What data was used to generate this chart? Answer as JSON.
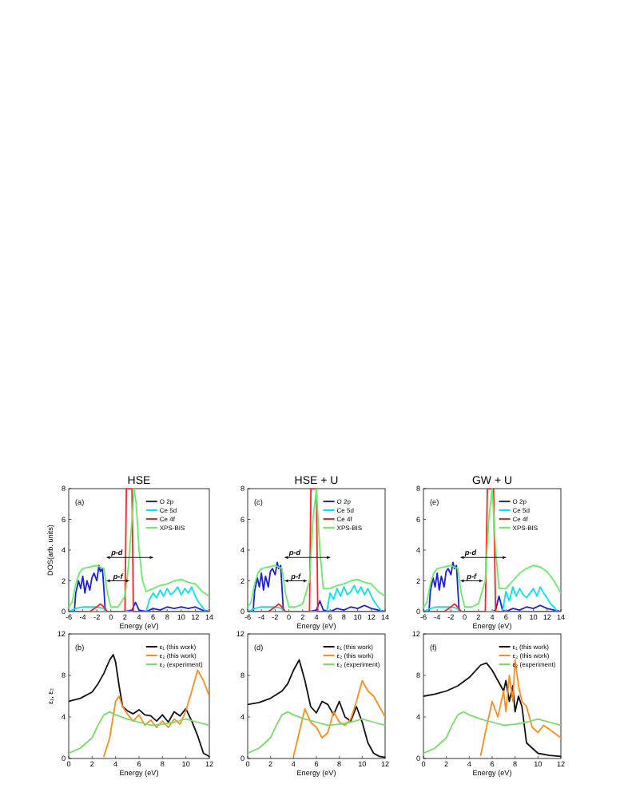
{
  "chart_data": [
    {
      "type": "line",
      "title": "HSE",
      "xlabel": "Energy (eV)",
      "ylabel": "DOS(arb. units)",
      "xlim": [
        -6,
        14
      ],
      "ylim": [
        0,
        8
      ],
      "xticks": [
        -6,
        -4,
        -2,
        0,
        2,
        4,
        6,
        8,
        10,
        12,
        14
      ],
      "yticks": [
        0,
        2,
        4,
        6,
        8
      ],
      "legend": "top right",
      "annotations": [
        "(a)",
        "p-d",
        "p-f"
      ],
      "series": [
        {
          "name": "O  2p",
          "color": "#1f1fe0",
          "x": [
            -6,
            -5.2,
            -5,
            -4.6,
            -4.3,
            -4,
            -3.7,
            -3.4,
            -3,
            -2.7,
            -2.4,
            -2,
            -1.7,
            -1.5,
            -1.2,
            -1,
            -0.8,
            0,
            2,
            3,
            3.5,
            4,
            5,
            6,
            7,
            8,
            9,
            10,
            11,
            12,
            13,
            14
          ],
          "values": [
            0,
            0,
            1.2,
            2,
            1.5,
            2.3,
            1.2,
            2,
            1.4,
            2.2,
            2.5,
            2,
            3,
            2.6,
            2.8,
            1.5,
            0,
            0,
            0,
            0.1,
            0.6,
            0.1,
            0,
            0.2,
            0.1,
            0.3,
            0.2,
            0.3,
            0.2,
            0.3,
            0.1,
            0
          ]
        },
        {
          "name": "Ce 5d",
          "color": "#00e5ee",
          "x": [
            -6,
            -5,
            -4,
            -2,
            -1,
            -0.8,
            0,
            5,
            5.5,
            6,
            6.5,
            7,
            7.5,
            8,
            8.5,
            9,
            9.5,
            10,
            10.5,
            11,
            11.5,
            12,
            12.5,
            13,
            13.5,
            14
          ],
          "values": [
            0,
            0.2,
            0.3,
            0.3,
            0.2,
            0,
            0,
            0,
            0.8,
            1.2,
            0.9,
            1.4,
            1,
            1.5,
            1.1,
            1.3,
            1.6,
            1.1,
            1.5,
            1.2,
            1.6,
            1,
            0.6,
            0.3,
            0,
            0
          ]
        },
        {
          "name": "Ce 4f",
          "color": "#ff2020",
          "x": [
            -6,
            -3,
            -2,
            -1.5,
            -1,
            -0.5,
            0,
            2,
            2.2,
            2.5,
            2.8,
            3,
            3.2,
            4,
            6,
            14
          ],
          "values": [
            0,
            0,
            0.3,
            0.5,
            0.3,
            0,
            0,
            0,
            8,
            8,
            8,
            8,
            0,
            0,
            0,
            0
          ]
        },
        {
          "name": "XPS-BIS",
          "color": "#66ee66",
          "x": [
            -6,
            -5.5,
            -5,
            -4.5,
            -4,
            -3,
            -2,
            -1,
            -0.5,
            0,
            1,
            2,
            2.5,
            3,
            3.3,
            3.6,
            4,
            4.5,
            5,
            6,
            7,
            8,
            9,
            10,
            11,
            12,
            13,
            14
          ],
          "values": [
            0.3,
            0.6,
            1.8,
            2.5,
            2.8,
            2.9,
            3,
            2.8,
            1.2,
            0.3,
            0.3,
            1,
            3,
            6,
            8,
            7,
            4,
            2,
            1.3,
            1.5,
            1.7,
            1.8,
            2,
            2.1,
            1.9,
            1.8,
            1.3,
            1
          ]
        }
      ]
    },
    {
      "type": "line",
      "title": "HSE + U",
      "xlabel": "Energy (eV)",
      "xlim": [
        -6,
        14
      ],
      "ylim": [
        0,
        8
      ],
      "xticks": [
        -6,
        -4,
        -2,
        0,
        2,
        4,
        6,
        8,
        10,
        12,
        14
      ],
      "yticks": [
        0,
        2,
        4,
        6,
        8
      ],
      "legend": "top right",
      "annotations": [
        "(c)",
        "p-d",
        "p-f"
      ],
      "series": [
        {
          "name": "O  2p",
          "color": "#1f1fe0",
          "x": [
            -6,
            -5.2,
            -5,
            -4.6,
            -4.3,
            -4,
            -3.7,
            -3.4,
            -3,
            -2.7,
            -2.4,
            -2,
            -1.7,
            -1.5,
            -1.2,
            -1,
            -0.8,
            0,
            3,
            4,
            4.5,
            5,
            6,
            7,
            8,
            9,
            10,
            11,
            12,
            13,
            14
          ],
          "values": [
            0,
            0,
            1.3,
            2.2,
            1.6,
            2.5,
            1.4,
            2.3,
            1.6,
            2.6,
            2.8,
            2.4,
            3.2,
            2.8,
            3,
            1.5,
            0,
            0,
            0,
            0.1,
            0.7,
            0.1,
            0,
            0.2,
            0.1,
            0.3,
            0.2,
            0.4,
            0.2,
            0.1,
            0
          ]
        },
        {
          "name": "Ce 5d",
          "color": "#00e5ee",
          "x": [
            -6,
            -5,
            -4,
            -2,
            -1,
            -0.8,
            0,
            5.5,
            6,
            6.5,
            7,
            7.5,
            8,
            8.5,
            9,
            9.5,
            10,
            10.5,
            11,
            11.5,
            12,
            12.5,
            13,
            13.5,
            14
          ],
          "values": [
            0,
            0.2,
            0.3,
            0.3,
            0.2,
            0,
            0,
            0,
            1.2,
            0.8,
            1.5,
            1,
            1.6,
            1.1,
            1.3,
            1.7,
            1.2,
            1.6,
            1.1,
            1.5,
            1,
            0.6,
            0.3,
            0,
            0
          ]
        },
        {
          "name": "Ce 4f",
          "color": "#ff2020",
          "x": [
            -6,
            -3,
            -2,
            -1.5,
            -1,
            -0.5,
            0,
            3,
            3.2,
            3.5,
            3.8,
            4,
            4.2,
            5,
            14
          ],
          "values": [
            0,
            0,
            0.3,
            0.5,
            0.3,
            0,
            0,
            0,
            8,
            8,
            8,
            8,
            0,
            0,
            0
          ]
        },
        {
          "name": "XPS-BIS",
          "color": "#66ee66",
          "x": [
            -6,
            -5.5,
            -5,
            -4.5,
            -4,
            -3,
            -2,
            -1,
            -0.5,
            0,
            1,
            2,
            3,
            3.5,
            4,
            4.5,
            5,
            6,
            7,
            8,
            9,
            10,
            11,
            12,
            13,
            14
          ],
          "values": [
            0.3,
            0.6,
            1.8,
            2.5,
            2.8,
            2.9,
            3,
            2.8,
            1.2,
            0.3,
            0.3,
            0.5,
            2,
            6,
            8,
            4,
            1.5,
            1.5,
            1.7,
            1.8,
            2,
            2.1,
            1.9,
            1.8,
            1.3,
            1
          ]
        }
      ]
    },
    {
      "type": "line",
      "title": "GW + U",
      "xlabel": "Energy (eV)",
      "xlim": [
        -6,
        14
      ],
      "ylim": [
        0,
        8
      ],
      "xticks": [
        -6,
        -4,
        -2,
        0,
        2,
        4,
        6,
        8,
        10,
        12,
        14
      ],
      "yticks": [
        0,
        2,
        4,
        6,
        8
      ],
      "legend": "top right",
      "annotations": [
        "(e)",
        "p-d",
        "p-f"
      ],
      "series": [
        {
          "name": "O  2p",
          "color": "#1f1fe0",
          "x": [
            -6,
            -5.2,
            -5,
            -4.6,
            -4.3,
            -4,
            -3.7,
            -3.4,
            -3,
            -2.7,
            -2.4,
            -2,
            -1.7,
            -1.5,
            -1.2,
            -1,
            -0.8,
            0,
            4,
            4.5,
            5,
            5.5,
            6,
            7,
            8,
            9,
            10,
            11,
            12,
            13,
            14
          ],
          "values": [
            0,
            0,
            1.3,
            2.2,
            1.6,
            2.5,
            1.4,
            2.3,
            1.6,
            2.6,
            2.8,
            2.4,
            3.2,
            2.8,
            3,
            1.5,
            0,
            0,
            0,
            0.1,
            1,
            0.1,
            0,
            0.2,
            0.1,
            0.3,
            0.2,
            0.4,
            0.2,
            0.1,
            0
          ]
        },
        {
          "name": "Ce 5d",
          "color": "#00e5ee",
          "x": [
            -6,
            -5,
            -4,
            -2,
            -1,
            -0.8,
            0,
            5.5,
            6,
            6.5,
            7,
            7.5,
            8,
            8.5,
            9,
            9.5,
            10,
            10.5,
            11,
            11.5,
            12,
            12.5,
            13,
            13.5,
            14
          ],
          "values": [
            0,
            0.2,
            0.3,
            0.3,
            0.2,
            0,
            0,
            0,
            1.3,
            0.7,
            1.6,
            1,
            1.5,
            1.1,
            0.9,
            1.2,
            1.5,
            1,
            1.6,
            1.2,
            0.9,
            0.5,
            0.3,
            0,
            0
          ]
        },
        {
          "name": "Ce 4f",
          "color": "#ff2020",
          "x": [
            -6,
            -3,
            -2,
            -1.5,
            -1,
            -0.5,
            0,
            3,
            3.3,
            3.6,
            3.9,
            4.2,
            4.5,
            5,
            14
          ],
          "values": [
            0,
            0,
            0.3,
            0.5,
            0.3,
            0,
            0,
            0,
            8,
            8,
            8,
            8,
            0,
            0,
            0
          ]
        },
        {
          "name": "XPS-BIS",
          "color": "#66ee66",
          "x": [
            -6,
            -5.5,
            -5,
            -4.5,
            -4,
            -3,
            -2,
            -1,
            -0.5,
            0,
            1,
            2,
            3,
            3.5,
            4,
            4.5,
            5,
            6,
            7,
            8,
            9,
            10,
            11,
            12,
            13,
            14
          ],
          "values": [
            0.3,
            0.6,
            1.8,
            2.5,
            2.8,
            2.9,
            3,
            2.8,
            1.2,
            0.3,
            0.3,
            0.5,
            2,
            6,
            8,
            4,
            1.5,
            1.5,
            2,
            2.5,
            2.8,
            3,
            2.9,
            2.6,
            2,
            1.2
          ]
        }
      ]
    },
    {
      "type": "line",
      "xlabel": "Energy (eV)",
      "ylabel": "ε₁, ε₂",
      "xlim": [
        0,
        12
      ],
      "ylim": [
        0,
        12
      ],
      "xticks": [
        0,
        2,
        4,
        6,
        8,
        10,
        12
      ],
      "yticks": [
        0,
        4,
        8,
        12
      ],
      "legend": "top right",
      "annotations": [
        "(b)"
      ],
      "series": [
        {
          "name": "ε₁ (this work)",
          "color": "#111111",
          "x": [
            0,
            1,
            2,
            2.5,
            3,
            3.5,
            3.8,
            4,
            4.3,
            4.6,
            5,
            5.5,
            6,
            6.5,
            7,
            7.5,
            8,
            8.5,
            9,
            9.5,
            10,
            10.5,
            11,
            11.5,
            12
          ],
          "values": [
            5.5,
            5.8,
            6.4,
            7.2,
            8.2,
            9.5,
            10,
            9.3,
            7,
            5,
            4.6,
            4.3,
            4.7,
            4.2,
            4.1,
            3.6,
            4.2,
            3.5,
            4.5,
            4.1,
            4.8,
            3.6,
            2.2,
            0.5,
            0.2
          ]
        },
        {
          "name": "ε₂ (this work)",
          "color": "#ff8c1a",
          "x": [
            3,
            3.5,
            4,
            4.3,
            4.6,
            5,
            5.5,
            6,
            6.5,
            7,
            7.5,
            8,
            8.5,
            9,
            9.5,
            10,
            10.5,
            11,
            11.5,
            12
          ],
          "values": [
            0.2,
            2,
            5.5,
            6,
            5,
            4.3,
            3.6,
            4.2,
            3.2,
            3.7,
            3,
            3.6,
            3,
            3.8,
            3.3,
            4.6,
            6.5,
            8.5,
            7.5,
            6
          ]
        },
        {
          "name": "ε₂ (experiment)",
          "color": "#77dd66",
          "x": [
            0,
            1,
            2,
            2.5,
            3,
            3.5,
            4,
            5,
            6,
            7,
            8,
            9,
            10,
            11,
            12
          ],
          "values": [
            0.5,
            1,
            2,
            3.2,
            4.2,
            4.5,
            4.2,
            3.8,
            3.5,
            3.2,
            3.3,
            3.5,
            3.8,
            3.5,
            3.2
          ]
        }
      ]
    },
    {
      "type": "line",
      "xlabel": "Energy (eV)",
      "xlim": [
        0,
        12
      ],
      "ylim": [
        0,
        12
      ],
      "xticks": [
        0,
        2,
        4,
        6,
        8,
        10,
        12
      ],
      "yticks": [
        0,
        4,
        8,
        12
      ],
      "legend": "top right",
      "annotations": [
        "(d)"
      ],
      "series": [
        {
          "name": "ε₁ (this work)",
          "color": "#111111",
          "x": [
            0,
            1,
            2,
            3,
            3.5,
            4,
            4.5,
            5,
            5.5,
            6,
            6.5,
            7,
            7.5,
            8,
            8.5,
            9,
            9.5,
            10,
            10.5,
            11,
            11.5,
            12
          ],
          "values": [
            5.2,
            5.4,
            5.8,
            6.5,
            7.2,
            8.5,
            9.5,
            7.5,
            5,
            4.4,
            5.5,
            5.2,
            4.2,
            5.5,
            4,
            3.6,
            5,
            3.5,
            1.5,
            0.5,
            0.2,
            0.1
          ]
        },
        {
          "name": "ε₂ (this work)",
          "color": "#ff8c1a",
          "x": [
            4,
            4.5,
            5,
            5.5,
            6,
            6.5,
            7,
            7.5,
            8,
            8.5,
            9,
            9.5,
            10,
            10.5,
            11,
            11.5,
            12
          ],
          "values": [
            0.2,
            2.5,
            4.8,
            3.5,
            3,
            2,
            2.5,
            4.5,
            3.5,
            3.2,
            3.8,
            5.5,
            7.5,
            6.5,
            6,
            5,
            4
          ]
        },
        {
          "name": "ε₂ (experiment)",
          "color": "#77dd66",
          "x": [
            0,
            1,
            2,
            2.5,
            3,
            3.5,
            4,
            5,
            6,
            7,
            8,
            9,
            10,
            11,
            12
          ],
          "values": [
            0.5,
            1,
            2,
            3.2,
            4.2,
            4.5,
            4.2,
            3.8,
            3.5,
            3.2,
            3.3,
            3.5,
            3.8,
            3.5,
            3.2
          ]
        }
      ]
    },
    {
      "type": "line",
      "xlabel": "Energy (eV)",
      "xlim": [
        0,
        12
      ],
      "ylim": [
        0,
        12
      ],
      "xticks": [
        0,
        2,
        4,
        6,
        8,
        10,
        12
      ],
      "yticks": [
        0,
        4,
        8,
        12
      ],
      "legend": "top right",
      "annotations": [
        "(f)"
      ],
      "series": [
        {
          "name": "ε₁ (this work)",
          "color": "#111111",
          "x": [
            0,
            1,
            2,
            3,
            4,
            5,
            5.5,
            6,
            6.5,
            7,
            7.2,
            7.5,
            7.8,
            8,
            8.3,
            8.6,
            9,
            9.5,
            10,
            11,
            12
          ],
          "values": [
            6,
            6.2,
            6.5,
            7,
            7.8,
            9,
            9.2,
            8.5,
            7.5,
            6.5,
            7.5,
            5.5,
            7,
            4.5,
            6,
            5,
            1.5,
            1,
            0.5,
            0.3,
            0.2
          ]
        },
        {
          "name": "ε₂ (this work)",
          "color": "#ff8c1a",
          "x": [
            5,
            5.5,
            6,
            6.5,
            7,
            7.2,
            7.5,
            7.8,
            8,
            8.3,
            8.6,
            9,
            9.5,
            10,
            10.5,
            11,
            11.5,
            12
          ],
          "values": [
            0.3,
            3,
            5.5,
            4,
            6.5,
            4.5,
            8,
            5.5,
            9.5,
            7,
            5.5,
            5,
            3,
            2.5,
            3.2,
            2.8,
            2.4,
            2
          ]
        },
        {
          "name": "ε₂ (experiment)",
          "color": "#77dd66",
          "x": [
            0,
            1,
            2,
            2.5,
            3,
            3.5,
            4,
            5,
            6,
            7,
            8,
            9,
            10,
            11,
            12
          ],
          "values": [
            0.5,
            1,
            2,
            3.2,
            4.2,
            4.5,
            4.2,
            3.8,
            3.5,
            3.2,
            3.3,
            3.5,
            3.8,
            3.5,
            3.2
          ]
        }
      ]
    }
  ]
}
